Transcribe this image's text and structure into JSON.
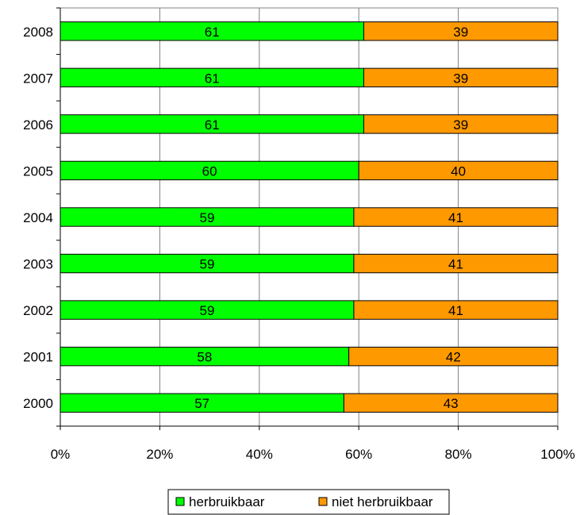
{
  "chart_data": {
    "type": "bar",
    "orientation": "horizontal",
    "stacked": "percent",
    "categories": [
      "2008",
      "2007",
      "2006",
      "2005",
      "2004",
      "2003",
      "2002",
      "2001",
      "2000"
    ],
    "series": [
      {
        "name": "herbruikbaar",
        "color": "#00ff00",
        "values": [
          61,
          61,
          61,
          60,
          59,
          59,
          59,
          58,
          57
        ]
      },
      {
        "name": "niet herbruikbaar",
        "color": "#ff9900",
        "values": [
          39,
          39,
          39,
          40,
          41,
          41,
          41,
          42,
          43
        ]
      }
    ],
    "x_ticks": [
      "0%",
      "20%",
      "40%",
      "60%",
      "80%",
      "100%"
    ],
    "xlim": [
      0,
      100
    ],
    "grid": "vertical",
    "legend": "bottom-center",
    "title": "",
    "xlabel": "",
    "ylabel": ""
  }
}
